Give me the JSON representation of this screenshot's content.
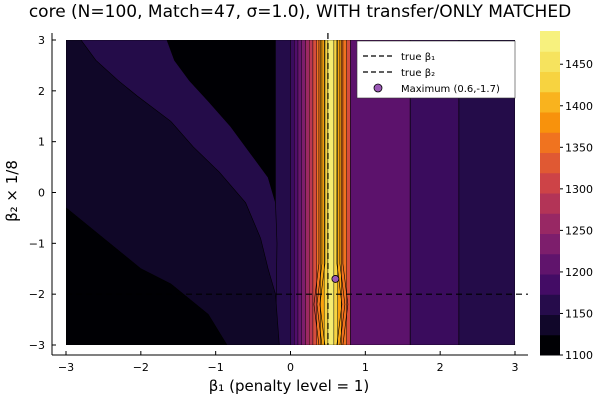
{
  "chart_data": {
    "type": "heatmap",
    "title": "core (N=100, Match=47, σ=1.0), WITH transfer/ONLY MATCHED",
    "xlabel": "β₁ (penalty level = 1)",
    "ylabel": "β₂ × 1/8",
    "xlim": [
      -3,
      3
    ],
    "ylim": [
      -3,
      3
    ],
    "x_ticks": [
      -3,
      -2,
      -1,
      0,
      1,
      2,
      3
    ],
    "x_tick_labels": [
      "−3",
      "−2",
      "−1",
      "0",
      "1",
      "2",
      "3"
    ],
    "y_ticks": [
      -3,
      -2,
      -1,
      0,
      1,
      2,
      3
    ],
    "y_tick_labels": [
      "−3",
      "−2",
      "−1",
      "0",
      "1",
      "2",
      "3"
    ],
    "colorbar": {
      "min": 1100,
      "max": 1490,
      "ticks": [
        1100,
        1150,
        1200,
        1250,
        1300,
        1350,
        1400,
        1450
      ],
      "tick_labels": [
        "1100",
        "1150",
        "1200",
        "1250",
        "1300",
        "1350",
        "1400",
        "1450"
      ],
      "colormap": "inferno"
    },
    "contour_columns": [
      {
        "x0": -3.0,
        "x1": -0.2,
        "value": 1100
      },
      {
        "x0": -0.2,
        "x1": 0.0,
        "value": 1150
      },
      {
        "x0": 0.0,
        "x1": 0.05,
        "value": 1170
      },
      {
        "x0": 0.05,
        "x1": 0.1,
        "value": 1190
      },
      {
        "x0": 0.1,
        "x1": 0.15,
        "value": 1210
      },
      {
        "x0": 0.15,
        "x1": 0.2,
        "value": 1230
      },
      {
        "x0": 0.2,
        "x1": 0.25,
        "value": 1260
      },
      {
        "x0": 0.25,
        "x1": 0.3,
        "value": 1290
      },
      {
        "x0": 0.3,
        "x1": 0.35,
        "value": 1320
      },
      {
        "x0": 0.35,
        "x1": 0.4,
        "value": 1360
      },
      {
        "x0": 0.4,
        "x1": 0.45,
        "value": 1400
      },
      {
        "x0": 0.45,
        "x1": 0.5,
        "value": 1440
      },
      {
        "x0": 0.5,
        "x1": 0.58,
        "value": 1480
      },
      {
        "x0": 0.58,
        "x1": 0.63,
        "value": 1440
      },
      {
        "x0": 0.63,
        "x1": 0.68,
        "value": 1400
      },
      {
        "x0": 0.68,
        "x1": 0.75,
        "value": 1360
      },
      {
        "x0": 0.75,
        "x1": 0.82,
        "value": 1320
      },
      {
        "x0": 0.82,
        "x1": 0.9,
        "value": 1290
      },
      {
        "x0": 0.9,
        "x1": 1.0,
        "value": 1260
      },
      {
        "x0": 1.0,
        "x1": 1.1,
        "value": 1240
      },
      {
        "x0": 1.1,
        "x1": 1.28,
        "value": 1220
      },
      {
        "x0": 1.28,
        "x1": 1.6,
        "value": 1200
      },
      {
        "x0": 1.6,
        "x1": 2.25,
        "value": 1180
      },
      {
        "x0": 2.25,
        "x1": 3.0,
        "value": 1160
      }
    ],
    "contour_regions": [
      {
        "value": 1150,
        "points": [
          [
            -3,
            3
          ],
          [
            -1.65,
            3
          ],
          [
            -1.55,
            2.6
          ],
          [
            -1.35,
            2.2
          ],
          [
            -1.1,
            1.8
          ],
          [
            -0.8,
            1.3
          ],
          [
            -0.55,
            0.8
          ],
          [
            -0.3,
            0.3
          ],
          [
            -0.2,
            -0.2
          ],
          [
            -0.18,
            -1.0
          ],
          [
            -0.2,
            -3
          ],
          [
            -0.95,
            -3
          ],
          [
            -1.1,
            -2.4
          ],
          [
            -1.6,
            -1.8
          ],
          [
            -2.0,
            -1.5
          ],
          [
            -2.5,
            -0.9
          ],
          [
            -3,
            -0.3
          ]
        ]
      },
      {
        "value": 1125,
        "points": [
          [
            -3,
            3
          ],
          [
            -2.8,
            3
          ],
          [
            -2.6,
            2.6
          ],
          [
            -2.3,
            2.2
          ],
          [
            -2.05,
            1.9
          ],
          [
            -1.6,
            1.4
          ],
          [
            -1.3,
            0.9
          ],
          [
            -0.95,
            0.4
          ],
          [
            -0.6,
            -0.2
          ],
          [
            -0.4,
            -0.9
          ],
          [
            -0.3,
            -1.5
          ],
          [
            -0.2,
            -2.0
          ],
          [
            -0.15,
            -3
          ],
          [
            -0.85,
            -3
          ],
          [
            -1.1,
            -2.4
          ],
          [
            -1.6,
            -1.8
          ],
          [
            -2.0,
            -1.5
          ],
          [
            -2.5,
            -0.9
          ],
          [
            -3,
            -0.3
          ]
        ]
      },
      {
        "value": 1100,
        "points": [
          [
            -3,
            -0.3
          ],
          [
            -2.5,
            -0.9
          ],
          [
            -2.0,
            -1.5
          ],
          [
            -1.6,
            -1.8
          ],
          [
            -1.1,
            -2.4
          ],
          [
            -0.85,
            -3
          ],
          [
            -3,
            -3
          ]
        ]
      },
      {
        "value": 1200,
        "points": [
          [
            0.8,
            3
          ],
          [
            1.6,
            3
          ],
          [
            1.6,
            -3
          ],
          [
            0.8,
            -3
          ]
        ]
      },
      {
        "value": 1170,
        "points": [
          [
            1.6,
            3
          ],
          [
            2.25,
            3
          ],
          [
            2.25,
            -3
          ],
          [
            1.6,
            -3
          ]
        ]
      },
      {
        "value": 1150,
        "points": [
          [
            2.25,
            3
          ],
          [
            3,
            3
          ],
          [
            3,
            -3
          ],
          [
            2.25,
            -3
          ]
        ]
      }
    ],
    "reference_lines": [
      {
        "name": "true β₁",
        "orientation": "vertical",
        "value": 0.5
      },
      {
        "name": "true β₂",
        "orientation": "horizontal",
        "value": -2
      }
    ],
    "maximum": {
      "label": "Maximum (0.6,-1.7)",
      "x": 0.6,
      "y": -1.7
    },
    "legend": {
      "position": "top-right",
      "entries": [
        {
          "label": "true β₁",
          "style": "dashed"
        },
        {
          "label": "true β₂",
          "style": "dashed"
        },
        {
          "label": "Maximum (0.6,-1.7)",
          "style": "marker",
          "color": "#9b59b6"
        }
      ]
    },
    "grid": true
  }
}
